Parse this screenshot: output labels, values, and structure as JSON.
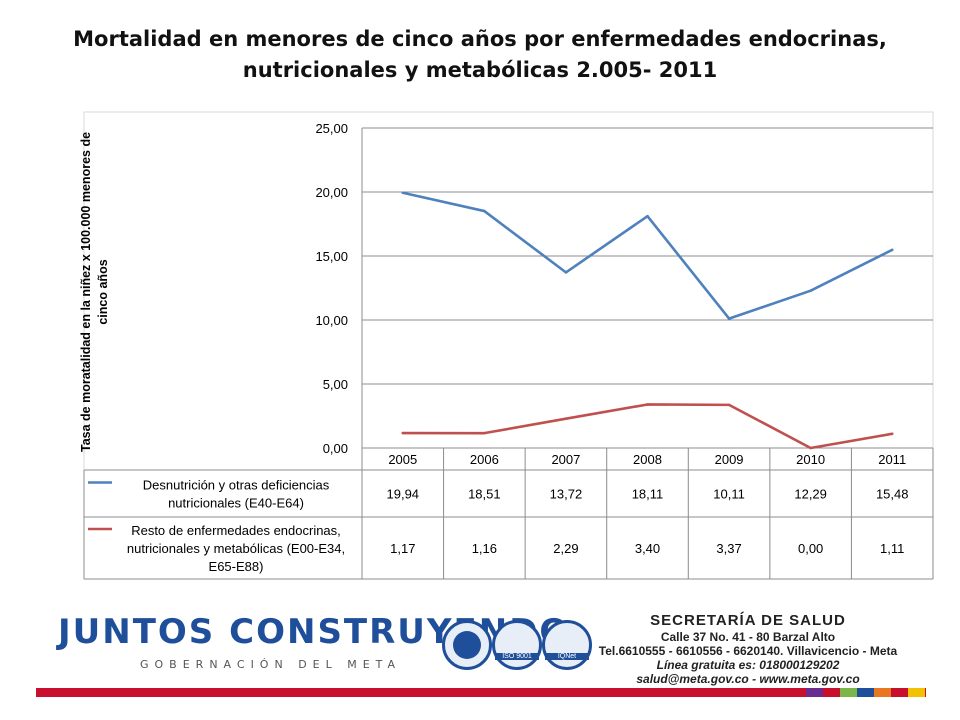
{
  "title_lines": [
    "Mortalidad en menores de cinco años por enfermedades endocrinas,",
    "nutricionales y metabólicas  2.005- 2011"
  ],
  "chart_data": {
    "type": "line",
    "ylabel_lines": [
      "Tasa de moratalidad  en la niñez x 100.000 menores de",
      "cinco años"
    ],
    "xlabel": "",
    "categories": [
      "2005",
      "2006",
      "2007",
      "2008",
      "2009",
      "2010",
      "2011"
    ],
    "ylim": [
      0,
      25
    ],
    "yticks": [
      0,
      5,
      10,
      15,
      20,
      25
    ],
    "ytick_labels": [
      "0,00",
      "5,00",
      "10,00",
      "15,00",
      "20,00",
      "25,00"
    ],
    "grid": true,
    "legend": "data-table",
    "series": [
      {
        "name_lines": [
          "Desnutrición y otras deficiencias",
          "nutricionales (E40-E64)"
        ],
        "color": "#4f81bd",
        "values": [
          19.94,
          18.51,
          13.72,
          18.11,
          10.11,
          12.29,
          15.48
        ],
        "labels": [
          "19,94",
          "18,51",
          "13,72",
          "18,11",
          "10,11",
          "12,29",
          "15,48"
        ]
      },
      {
        "name_lines": [
          "Resto de enfermedades endocrinas,",
          "nutricionales y metabólicas (E00-E34,",
          "E65-E88)"
        ],
        "color": "#c0504d",
        "values": [
          1.17,
          1.16,
          2.29,
          3.4,
          3.37,
          0.0,
          1.11
        ],
        "labels": [
          "1,17",
          "1,16",
          "2,29",
          "3,40",
          "3,37",
          "0,00",
          "1,11"
        ]
      }
    ]
  },
  "footer": {
    "logo_main": "JUNTOS CONSTRUYENDO",
    "logo_sub": "GOBERNACIÓN DEL META",
    "seal_labels": [
      "ISO 9001",
      "IQNet"
    ],
    "contact": {
      "head": "SECRETARÍA DE SALUD",
      "lines": [
        "Calle 37 No. 41 - 80 Barzal Alto",
        "Tel.6610555 - 6610556 - 6620140. Villavicencio - Meta",
        "Línea gratuita es: 018000129202",
        "salud@meta.gov.co - www.meta.gov.co"
      ]
    },
    "stripe_colors": [
      "#6a2c91",
      "#c8102e",
      "#7ab648",
      "#1f4e9a",
      "#e87722",
      "#c8102e",
      "#f2c200"
    ]
  }
}
